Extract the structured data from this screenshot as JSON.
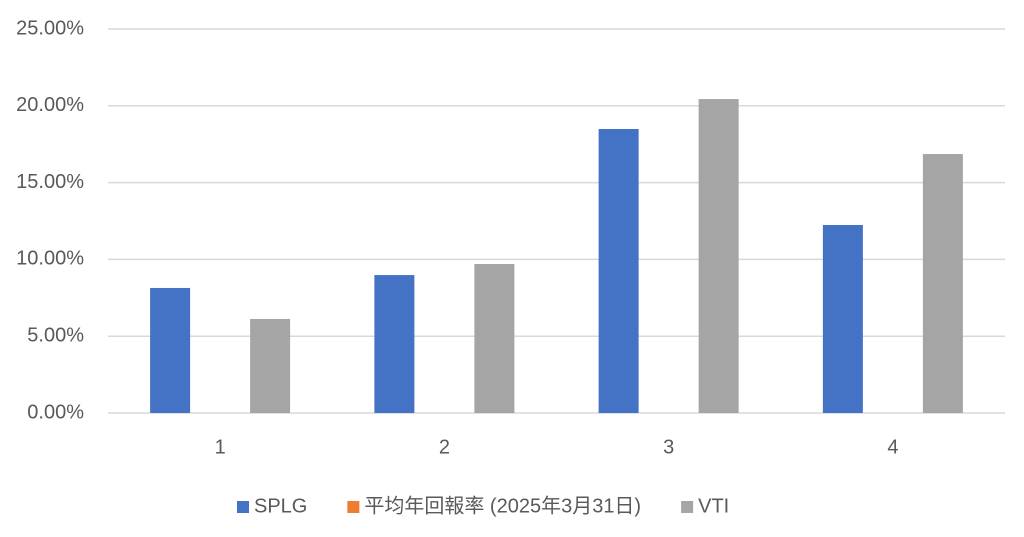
{
  "chart_data": {
    "type": "bar",
    "categories": [
      "1",
      "2",
      "3",
      "4"
    ],
    "series": [
      {
        "name": "SPLG",
        "color": "#4472c4",
        "values": [
          8.14,
          8.98,
          18.49,
          12.24
        ]
      },
      {
        "name": "平均年回報率 (2025年3月31日)",
        "color": "#ed7d31",
        "values": [
          null,
          null,
          null,
          null
        ]
      },
      {
        "name": "VTI",
        "color": "#a5a5a5",
        "values": [
          6.12,
          9.7,
          20.44,
          16.86
        ]
      }
    ],
    "ylim": [
      0,
      25
    ],
    "yticks": [
      {
        "value": 0,
        "label": "0.00%"
      },
      {
        "value": 5,
        "label": "5.00%"
      },
      {
        "value": 10,
        "label": "10.00%"
      },
      {
        "value": 15,
        "label": "15.00%"
      },
      {
        "value": 20,
        "label": "20.00%"
      },
      {
        "value": 25,
        "label": "25.00%"
      }
    ],
    "grid": true,
    "legend": "bottom"
  }
}
